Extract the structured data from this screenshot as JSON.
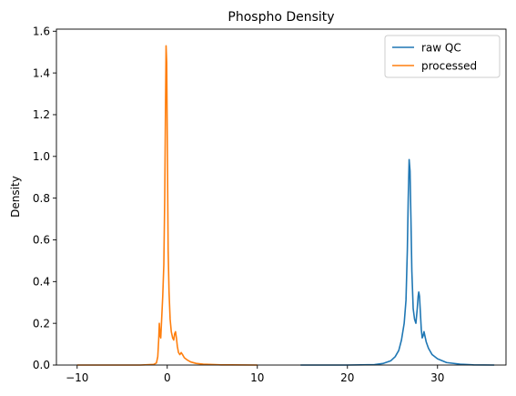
{
  "chart_data": {
    "type": "line",
    "title": "Phospho Density",
    "xlabel": "",
    "ylabel": "Density",
    "xlim": [
      -12.3,
      37.6
    ],
    "ylim": [
      0,
      1.61
    ],
    "x_ticks": [
      -10,
      0,
      10,
      20,
      30
    ],
    "y_ticks": [
      0.0,
      0.2,
      0.4,
      0.6,
      0.8,
      1.0,
      1.2,
      1.4,
      1.6
    ],
    "x_tick_labels": [
      "−10",
      "0",
      "10",
      "20",
      "30"
    ],
    "y_tick_labels": [
      "0.0",
      "0.2",
      "0.4",
      "0.6",
      "0.8",
      "1.0",
      "1.2",
      "1.4",
      "1.6"
    ],
    "grid": false,
    "legend_position": "top-right",
    "series": [
      {
        "name": "raw QC",
        "color": "#1f77b4",
        "points": [
          [
            14.8,
            0.0
          ],
          [
            20,
            0.0
          ],
          [
            23,
            0.002
          ],
          [
            24,
            0.008
          ],
          [
            24.8,
            0.02
          ],
          [
            25.3,
            0.04
          ],
          [
            25.7,
            0.07
          ],
          [
            26.0,
            0.12
          ],
          [
            26.3,
            0.2
          ],
          [
            26.5,
            0.31
          ],
          [
            26.65,
            0.55
          ],
          [
            26.75,
            0.8
          ],
          [
            26.85,
            0.985
          ],
          [
            26.95,
            0.93
          ],
          [
            27.05,
            0.7
          ],
          [
            27.15,
            0.45
          ],
          [
            27.3,
            0.27
          ],
          [
            27.45,
            0.22
          ],
          [
            27.6,
            0.2
          ],
          [
            27.75,
            0.27
          ],
          [
            27.85,
            0.33
          ],
          [
            27.92,
            0.35
          ],
          [
            28.0,
            0.33
          ],
          [
            28.1,
            0.25
          ],
          [
            28.2,
            0.17
          ],
          [
            28.3,
            0.13
          ],
          [
            28.4,
            0.14
          ],
          [
            28.5,
            0.16
          ],
          [
            28.6,
            0.14
          ],
          [
            28.75,
            0.11
          ],
          [
            29.0,
            0.08
          ],
          [
            29.4,
            0.05
          ],
          [
            30.0,
            0.03
          ],
          [
            31.0,
            0.012
          ],
          [
            32.5,
            0.004
          ],
          [
            34.0,
            0.001
          ],
          [
            36.3,
            0.0
          ]
        ]
      },
      {
        "name": "processed",
        "color": "#ff7f0e",
        "points": [
          [
            -10.0,
            0.0
          ],
          [
            -3.0,
            0.0
          ],
          [
            -1.5,
            0.003
          ],
          [
            -1.2,
            0.01
          ],
          [
            -1.05,
            0.04
          ],
          [
            -0.95,
            0.12
          ],
          [
            -0.88,
            0.2
          ],
          [
            -0.8,
            0.14
          ],
          [
            -0.72,
            0.13
          ],
          [
            -0.62,
            0.22
          ],
          [
            -0.5,
            0.33
          ],
          [
            -0.38,
            0.48
          ],
          [
            -0.28,
            0.8
          ],
          [
            -0.2,
            1.2
          ],
          [
            -0.13,
            1.53
          ],
          [
            -0.06,
            1.45
          ],
          [
            0.02,
            1.0
          ],
          [
            0.1,
            0.55
          ],
          [
            0.2,
            0.35
          ],
          [
            0.32,
            0.22
          ],
          [
            0.45,
            0.16
          ],
          [
            0.6,
            0.13
          ],
          [
            0.72,
            0.12
          ],
          [
            0.82,
            0.15
          ],
          [
            0.92,
            0.16
          ],
          [
            1.02,
            0.13
          ],
          [
            1.12,
            0.09
          ],
          [
            1.25,
            0.06
          ],
          [
            1.4,
            0.05
          ],
          [
            1.55,
            0.06
          ],
          [
            1.7,
            0.05
          ],
          [
            1.9,
            0.035
          ],
          [
            2.2,
            0.025
          ],
          [
            2.6,
            0.015
          ],
          [
            3.2,
            0.008
          ],
          [
            4.0,
            0.004
          ],
          [
            6.0,
            0.001
          ],
          [
            10.0,
            0.0
          ]
        ]
      }
    ]
  },
  "style": {
    "axes_color": "#000000",
    "background": "#ffffff"
  }
}
